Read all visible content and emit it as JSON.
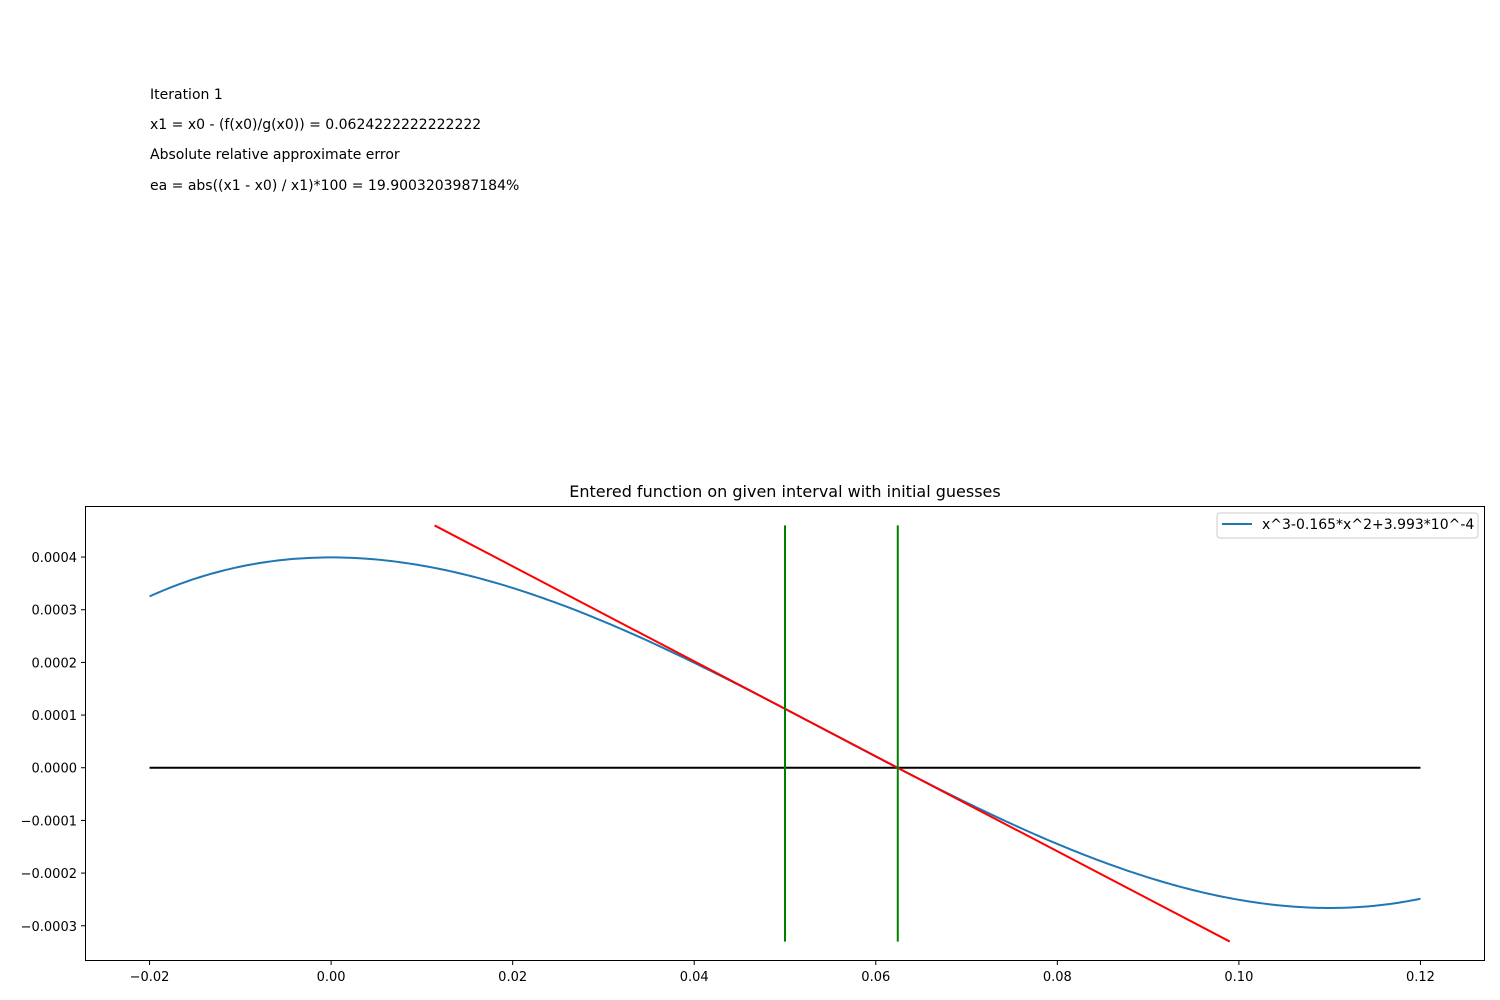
{
  "info": {
    "iteration": "Iteration 1",
    "formula": "x1 = x0 - (f(x0)/g(x0)) = 0.0624222222222222",
    "error_heading": "Absolute relative approximate error",
    "error_formula": "ea = abs((x1 - x0) / x1)*100 = 19.9003203987184%"
  },
  "chart_data": {
    "type": "line",
    "title": "Entered function on given interval with initial guesses",
    "xlim": [
      -0.027,
      0.127
    ],
    "ylim": [
      -0.000365,
      0.000495
    ],
    "x_ticks": [
      -0.02,
      0.0,
      0.02,
      0.04,
      0.06,
      0.08,
      0.1,
      0.12
    ],
    "x_tick_labels": [
      "−0.02",
      "0.00",
      "0.02",
      "0.04",
      "0.06",
      "0.08",
      "0.10",
      "0.12"
    ],
    "y_ticks": [
      -0.0003,
      -0.0002,
      -0.0001,
      0.0,
      0.0001,
      0.0002,
      0.0003,
      0.0004
    ],
    "y_tick_labels": [
      "−0.0003",
      "−0.0002",
      "−0.0001",
      "0.0000",
      "0.0001",
      "0.0002",
      "0.0003",
      "0.0004"
    ],
    "legend_position": "upper-right",
    "function": {
      "name": "x^3-0.165*x^2+3.993*10^-4",
      "coefficients": [
        1,
        -0.165,
        0,
        0.0003993
      ],
      "x_range": [
        -0.02,
        0.12
      ],
      "color": "#1f77b4"
    },
    "axis_line": {
      "x": [
        -0.02,
        0.12
      ],
      "y": 0.0,
      "color": "#000000"
    },
    "tangent_line": {
      "x": [
        0.0114,
        0.099
      ],
      "y": [
        0.00046,
        -0.00033
      ],
      "color": "#ff0000"
    },
    "guess_lines": [
      {
        "x": 0.05,
        "y": [
          -0.00033,
          0.00046
        ],
        "color": "#008000"
      },
      {
        "x": 0.0624222222222222,
        "y": [
          -0.00033,
          0.00046
        ],
        "color": "#008000"
      }
    ]
  }
}
